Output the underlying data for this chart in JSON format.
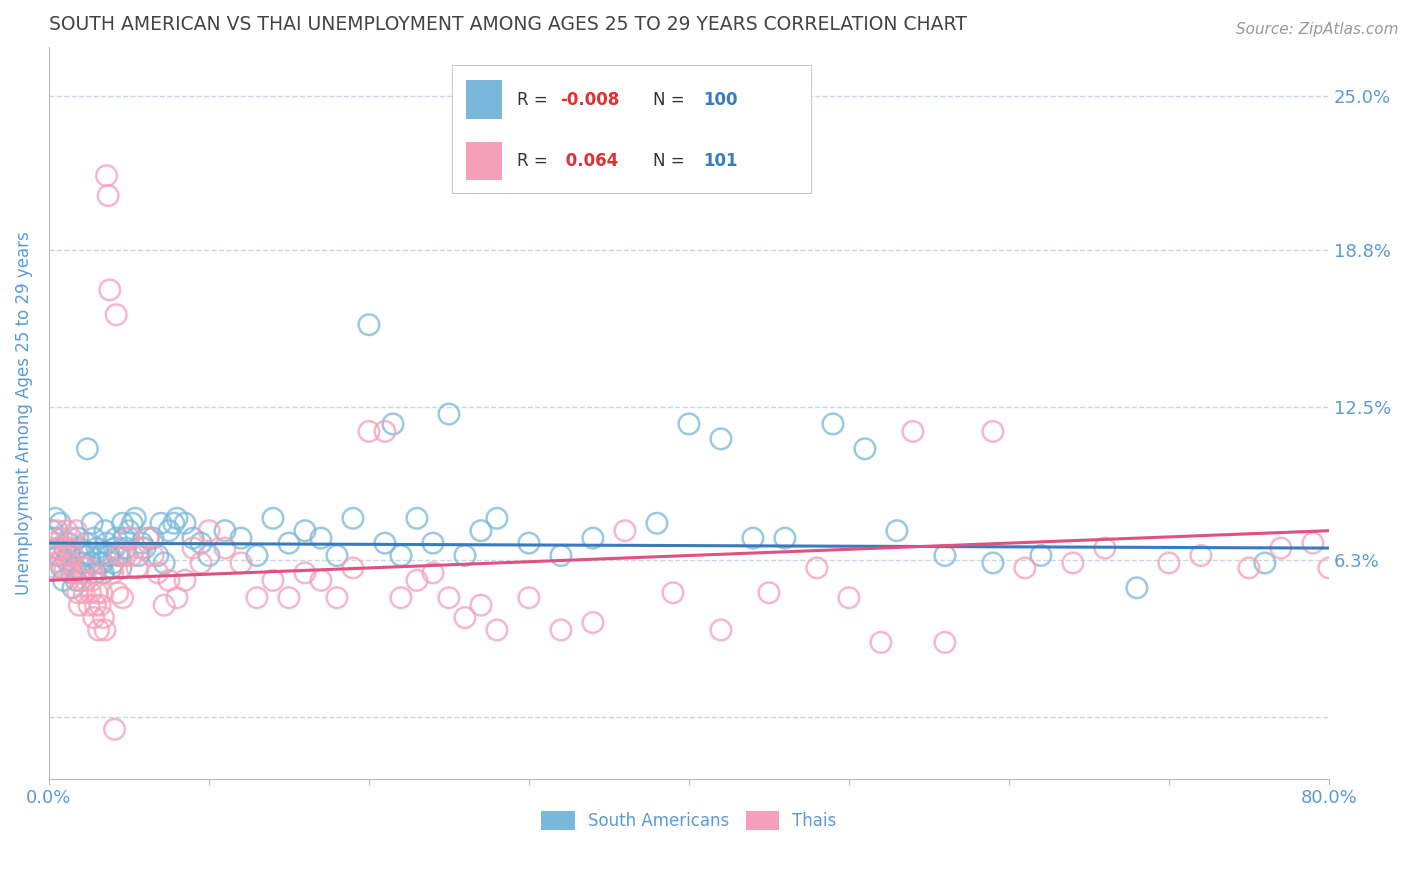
{
  "title": "SOUTH AMERICAN VS THAI UNEMPLOYMENT AMONG AGES 25 TO 29 YEARS CORRELATION CHART",
  "source": "Source: ZipAtlas.com",
  "ylabel": "Unemployment Among Ages 25 to 29 years",
  "xlim": [
    0,
    0.8
  ],
  "ylim": [
    -0.025,
    0.27
  ],
  "xticks": [
    0.0,
    0.1,
    0.2,
    0.3,
    0.4,
    0.5,
    0.6,
    0.7,
    0.8
  ],
  "xticklabels": [
    "0.0%",
    "",
    "",
    "",
    "",
    "",
    "",
    "",
    "80.0%"
  ],
  "yticks": [
    0.0,
    0.063,
    0.125,
    0.188,
    0.25
  ],
  "yticklabels": [
    "",
    "6.3%",
    "12.5%",
    "18.8%",
    "25.0%"
  ],
  "legend_R_blue": "-0.008",
  "legend_N_blue": "100",
  "legend_R_pink": "0.064",
  "legend_N_pink": "101",
  "legend_label_blue": "South Americans",
  "legend_label_pink": "Thais",
  "blue_color": "#7ab8d9",
  "pink_color": "#f4a0b8",
  "trendline_blue_color": "#3a7bbf",
  "trendline_pink_color": "#e05080",
  "background_color": "#ffffff",
  "grid_color": "#c8d8e8",
  "title_color": "#444444",
  "axis_label_color": "#5b9bd5",
  "tick_label_color": "#5b9bd5",
  "blue_points_x": [
    0.002,
    0.003,
    0.004,
    0.005,
    0.006,
    0.007,
    0.008,
    0.009,
    0.01,
    0.011,
    0.012,
    0.013,
    0.014,
    0.015,
    0.016,
    0.017,
    0.018,
    0.019,
    0.02,
    0.021,
    0.022,
    0.023,
    0.024,
    0.025,
    0.026,
    0.027,
    0.028,
    0.029,
    0.03,
    0.031,
    0.032,
    0.033,
    0.034,
    0.035,
    0.036,
    0.037,
    0.038,
    0.039,
    0.04,
    0.041,
    0.042,
    0.043,
    0.044,
    0.045,
    0.046,
    0.047,
    0.048,
    0.05,
    0.052,
    0.054,
    0.056,
    0.058,
    0.06,
    0.062,
    0.065,
    0.068,
    0.07,
    0.072,
    0.075,
    0.078,
    0.08,
    0.085,
    0.09,
    0.095,
    0.1,
    0.11,
    0.12,
    0.13,
    0.14,
    0.15,
    0.16,
    0.17,
    0.18,
    0.19,
    0.2,
    0.21,
    0.215,
    0.22,
    0.23,
    0.24,
    0.25,
    0.26,
    0.27,
    0.28,
    0.3,
    0.32,
    0.34,
    0.38,
    0.4,
    0.42,
    0.44,
    0.46,
    0.49,
    0.51,
    0.53,
    0.56,
    0.59,
    0.62,
    0.68,
    0.76
  ],
  "blue_points_y": [
    0.075,
    0.072,
    0.08,
    0.068,
    0.065,
    0.078,
    0.06,
    0.055,
    0.068,
    0.063,
    0.07,
    0.065,
    0.058,
    0.052,
    0.06,
    0.055,
    0.072,
    0.068,
    0.062,
    0.058,
    0.065,
    0.07,
    0.108,
    0.065,
    0.062,
    0.078,
    0.072,
    0.058,
    0.068,
    0.062,
    0.065,
    0.062,
    0.058,
    0.075,
    0.07,
    0.065,
    0.065,
    0.06,
    0.062,
    0.068,
    0.072,
    0.065,
    0.065,
    0.06,
    0.078,
    0.072,
    0.068,
    0.075,
    0.078,
    0.08,
    0.065,
    0.07,
    0.068,
    0.072,
    0.072,
    0.065,
    0.078,
    0.062,
    0.075,
    0.078,
    0.08,
    0.078,
    0.072,
    0.07,
    0.065,
    0.075,
    0.072,
    0.065,
    0.08,
    0.07,
    0.075,
    0.072,
    0.065,
    0.08,
    0.158,
    0.07,
    0.118,
    0.065,
    0.08,
    0.07,
    0.122,
    0.065,
    0.075,
    0.08,
    0.07,
    0.065,
    0.072,
    0.078,
    0.118,
    0.112,
    0.072,
    0.072,
    0.118,
    0.108,
    0.075,
    0.065,
    0.062,
    0.065,
    0.052,
    0.062
  ],
  "pink_points_x": [
    0.002,
    0.003,
    0.004,
    0.005,
    0.006,
    0.007,
    0.008,
    0.009,
    0.01,
    0.011,
    0.012,
    0.013,
    0.014,
    0.015,
    0.016,
    0.017,
    0.018,
    0.019,
    0.02,
    0.021,
    0.022,
    0.023,
    0.024,
    0.025,
    0.026,
    0.027,
    0.028,
    0.029,
    0.03,
    0.031,
    0.032,
    0.033,
    0.034,
    0.035,
    0.036,
    0.037,
    0.038,
    0.039,
    0.04,
    0.041,
    0.042,
    0.043,
    0.044,
    0.046,
    0.048,
    0.05,
    0.052,
    0.055,
    0.058,
    0.062,
    0.065,
    0.068,
    0.072,
    0.075,
    0.08,
    0.085,
    0.09,
    0.095,
    0.1,
    0.11,
    0.12,
    0.13,
    0.14,
    0.15,
    0.16,
    0.17,
    0.18,
    0.19,
    0.2,
    0.21,
    0.22,
    0.23,
    0.24,
    0.25,
    0.26,
    0.27,
    0.28,
    0.3,
    0.32,
    0.34,
    0.36,
    0.39,
    0.42,
    0.45,
    0.48,
    0.5,
    0.52,
    0.54,
    0.56,
    0.59,
    0.61,
    0.64,
    0.66,
    0.7,
    0.72,
    0.75,
    0.77,
    0.79,
    0.8,
    0.81,
    0.82
  ],
  "pink_points_y": [
    0.07,
    0.065,
    0.06,
    0.075,
    0.068,
    0.062,
    0.072,
    0.065,
    0.06,
    0.075,
    0.068,
    0.062,
    0.072,
    0.065,
    0.058,
    0.075,
    0.05,
    0.045,
    0.055,
    0.06,
    0.05,
    0.055,
    0.06,
    0.045,
    0.05,
    0.055,
    0.04,
    0.045,
    0.05,
    0.035,
    0.045,
    0.05,
    0.04,
    0.035,
    0.218,
    0.21,
    0.172,
    0.06,
    0.058,
    -0.005,
    0.162,
    0.05,
    0.065,
    0.048,
    0.065,
    0.072,
    0.065,
    0.06,
    0.068,
    0.072,
    0.065,
    0.058,
    0.045,
    0.055,
    0.048,
    0.055,
    0.068,
    0.062,
    0.075,
    0.068,
    0.062,
    0.048,
    0.055,
    0.048,
    0.058,
    0.055,
    0.048,
    0.06,
    0.115,
    0.115,
    0.048,
    0.055,
    0.058,
    0.048,
    0.04,
    0.045,
    0.035,
    0.048,
    0.035,
    0.038,
    0.075,
    0.05,
    0.035,
    0.05,
    0.06,
    0.048,
    0.03,
    0.115,
    0.03,
    0.115,
    0.06,
    0.062,
    0.068,
    0.062,
    0.065,
    0.06,
    0.068,
    0.07,
    0.06,
    0.068,
    0.072
  ],
  "blue_trend_x0": 0.0,
  "blue_trend_y0": 0.07,
  "blue_trend_x1": 0.8,
  "blue_trend_y1": 0.068,
  "pink_trend_x0": 0.0,
  "pink_trend_y0": 0.055,
  "pink_trend_x1": 0.8,
  "pink_trend_y1": 0.075
}
